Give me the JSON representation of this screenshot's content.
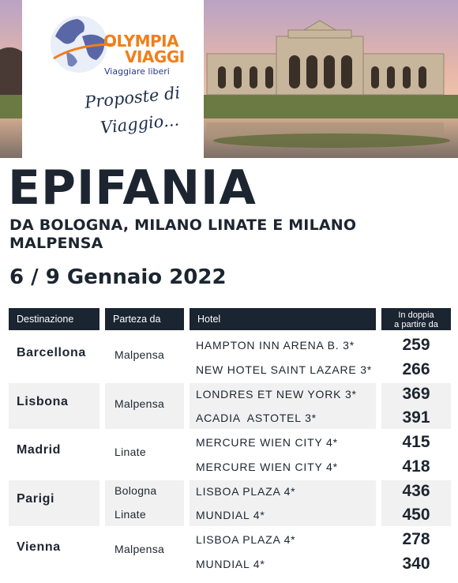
{
  "brand": {
    "name_line1": "OLYMPIA",
    "name_line2": "VIAGGI",
    "tagline": "Viaggiare liberi",
    "script_line1": "Proposte di",
    "script_line2": "Viaggio..."
  },
  "title": "EPIFANIA",
  "subtitle": "DA BOLOGNA, MILANO LINATE E MILANO MALPENSA",
  "dates": "6 / 9 Gennaio 2022",
  "table": {
    "headers": {
      "destinazione": "Destinazione",
      "partenza": "Parteza da",
      "hotel": "Hotel",
      "prezzo_line1": "In doppia",
      "prezzo_line2": "a partire da"
    },
    "groups": [
      {
        "destination": "Barcellona",
        "departures": [
          "Malpensa"
        ],
        "rows": [
          {
            "hotel": "HAMPTON INN ARENA B. 3*",
            "price": "259"
          },
          {
            "hotel": "NEW HOTEL SAINT LAZARE 3*",
            "price": "266"
          }
        ]
      },
      {
        "destination": "Lisbona",
        "departures": [
          "Malpensa"
        ],
        "rows": [
          {
            "hotel": "LONDRES ET NEW YORK 3*",
            "price": "369"
          },
          {
            "hotel": "ACADIA  ASTOTEL 3*",
            "price": "391"
          }
        ]
      },
      {
        "destination": "Madrid",
        "departures": [
          "Linate"
        ],
        "rows": [
          {
            "hotel": "MERCURE WIEN CITY 4*",
            "price": "415"
          },
          {
            "hotel": "MERCURE WIEN CITY 4*",
            "price": "418"
          }
        ]
      },
      {
        "destination": "Parigi",
        "departures": [
          "Bologna",
          "Linate"
        ],
        "rows": [
          {
            "hotel": "LISBOA PLAZA 4*",
            "price": "436"
          },
          {
            "hotel": "MUNDIAL 4*",
            "price": "450"
          }
        ]
      },
      {
        "destination": "Vienna",
        "departures": [
          "Malpensa"
        ],
        "rows": [
          {
            "hotel": "LISBOA PLAZA 4*",
            "price": "278"
          },
          {
            "hotel": "MUNDIAL 4*",
            "price": "340"
          }
        ]
      }
    ]
  },
  "colors": {
    "brand_orange": "#ef7f1a",
    "brand_blue": "#2a3a8c",
    "header_dark": "#1b2431",
    "band_gray": "#f1f1f1",
    "text_dark": "#1c2530"
  }
}
